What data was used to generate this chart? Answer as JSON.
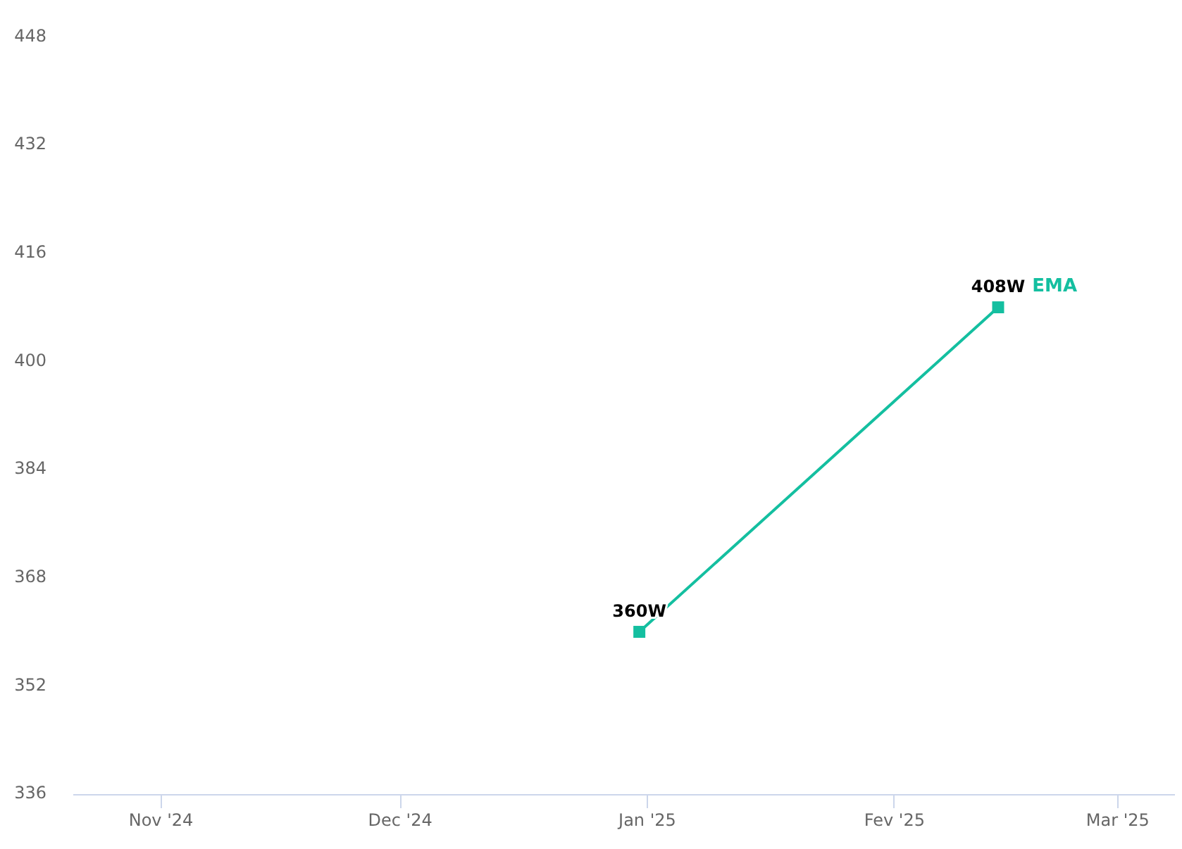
{
  "chart_data": {
    "type": "line",
    "x": [
      "2024-12-31",
      "2025-02-14"
    ],
    "series": [
      {
        "name": "EMA",
        "color": "#14bfa0",
        "values": [
          360,
          408
        ],
        "value_labels": [
          "360W",
          "408W"
        ]
      }
    ],
    "xlim": [
      "2024-10-21",
      "2025-03-08"
    ],
    "xticks": [
      {
        "value": "2024-11-01",
        "label": "Nov '24"
      },
      {
        "value": "2024-12-01",
        "label": "Dec '24"
      },
      {
        "value": "2025-01-01",
        "label": "Jan '25"
      },
      {
        "value": "2025-02-01",
        "label": "Fev '25"
      },
      {
        "value": "2025-03-01",
        "label": "Mar '25"
      }
    ],
    "ylim": [
      336,
      448
    ],
    "yticks": [
      336,
      352,
      368,
      384,
      400,
      416,
      432,
      448
    ],
    "marker": "square",
    "line_style": "solid",
    "grid": false,
    "legend": false
  }
}
